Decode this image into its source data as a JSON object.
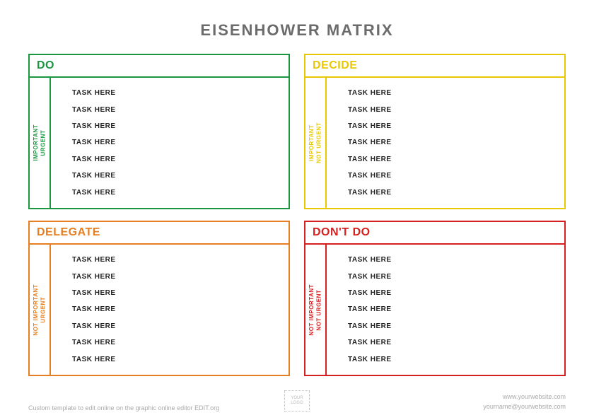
{
  "title": "EISENHOWER MATRIX",
  "quadrants": [
    {
      "header": "DO",
      "side_label": "IMPORTANT\nURGENT",
      "color": "#1a9641",
      "tasks": [
        "TASK HERE",
        "TASK HERE",
        "TASK HERE",
        "TASK HERE",
        "TASK HERE",
        "TASK HERE",
        "TASK HERE"
      ]
    },
    {
      "header": "DECIDE",
      "side_label": "IMPORTANT\nNOT URGENT",
      "color": "#e8c800",
      "tasks": [
        "TASK HERE",
        "TASK HERE",
        "TASK HERE",
        "TASK HERE",
        "TASK HERE",
        "TASK HERE",
        "TASK HERE"
      ]
    },
    {
      "header": "DELEGATE",
      "side_label": "NOT IMPORTANT\nURGENT",
      "color": "#e67e22",
      "tasks": [
        "TASK HERE",
        "TASK HERE",
        "TASK HERE",
        "TASK HERE",
        "TASK HERE",
        "TASK HERE",
        "TASK HERE"
      ]
    },
    {
      "header": "DON'T DO",
      "side_label": "NOT IMPORTANT\nNOT URGENT",
      "color": "#d62020",
      "tasks": [
        "TASK HERE",
        "TASK HERE",
        "TASK HERE",
        "TASK HERE",
        "TASK HERE",
        "TASK HERE",
        "TASK HERE"
      ]
    }
  ],
  "footer": {
    "left": "Custom template to edit online on the graphic online editor EDIT.org",
    "logo": "YOUR\nLOGO",
    "website": "www.yourwebsite.com",
    "email": "yourname@yourwebsite.com"
  },
  "style": {
    "title_color": "#6b6b6b",
    "title_fontsize": 22,
    "task_fontsize": 10,
    "background": "#ffffff"
  }
}
